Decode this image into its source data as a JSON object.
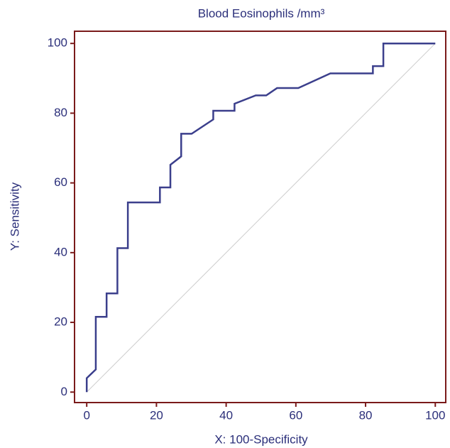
{
  "chart_data": {
    "type": "line",
    "title": "Blood Eosinophils /mm³",
    "x_label": "X: 100-Specificity",
    "y_label": "Y: Sensitivity",
    "xlim": [
      -3.5,
      103
    ],
    "ylim": [
      -3,
      103.5
    ],
    "xticks": [
      0,
      20,
      40,
      60,
      80,
      100
    ],
    "yticks": [
      0,
      20,
      40,
      60,
      80,
      100
    ],
    "frame_color": "#7a1a1a",
    "series": [
      {
        "color": "#3b3f8c",
        "x": [
          0,
          0,
          2.6,
          2.6,
          5.7,
          5.7,
          8.8,
          8.8,
          11.8,
          11.8,
          21,
          21,
          24,
          24,
          27.1,
          27.1,
          30.1,
          36.3,
          36.3,
          42.4,
          42.4,
          48.5,
          51.5,
          54.6,
          60.7,
          69.9,
          82.1,
          82.1,
          85.1,
          85.1,
          100
        ],
        "values": [
          0,
          4,
          6.5,
          21.6,
          21.6,
          28.3,
          28.3,
          41.3,
          41.3,
          54.4,
          54.4,
          58.7,
          58.7,
          65.2,
          67.6,
          74.1,
          74.1,
          78.2,
          80.7,
          80.7,
          82.7,
          85.1,
          85.1,
          87.2,
          87.2,
          91.4,
          91.4,
          93.5,
          93.5,
          100,
          100
        ]
      }
    ],
    "reference_line": {
      "color": "#cccccc",
      "x": [
        0,
        100
      ],
      "values": [
        0,
        100
      ]
    }
  }
}
